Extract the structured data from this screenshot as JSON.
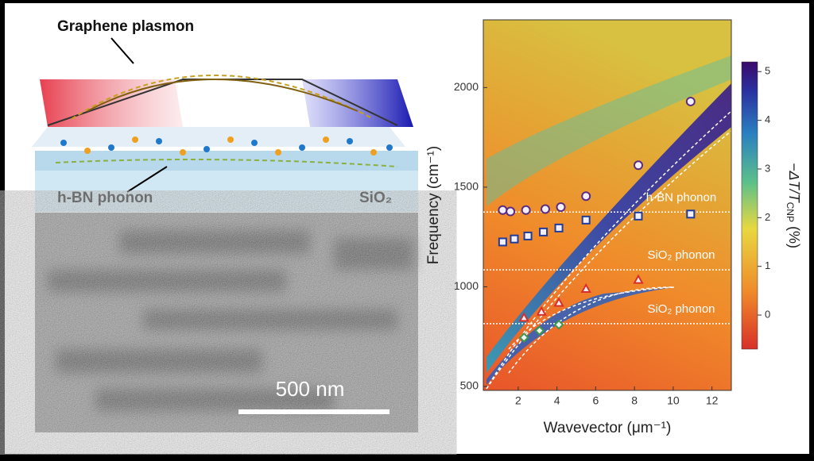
{
  "schematic": {
    "plasmon_label": "Graphene plasmon",
    "phonon_label": "h-BN phonon",
    "substrate_label": "SiO₂"
  },
  "micrograph": {
    "scale_label": "500 nm"
  },
  "chart_data": {
    "type": "scatter",
    "xlabel": "Wavevector (μm⁻¹)",
    "ylabel": "Frequency (cm⁻¹)",
    "xlim": [
      0.2,
      13
    ],
    "ylim": [
      480,
      2340
    ],
    "xticks": [
      2,
      4,
      6,
      8,
      10,
      12
    ],
    "yticks": [
      500,
      1000,
      1500,
      2000
    ],
    "series": [
      {
        "marker": "circle",
        "color": "#5b2c83",
        "x": [
          1.2,
          1.6,
          2.4,
          3.4,
          4.2,
          5.5,
          8.2,
          10.9
        ],
        "y": [
          1385,
          1378,
          1385,
          1390,
          1400,
          1455,
          1610,
          1930
        ]
      },
      {
        "marker": "square",
        "color": "#1f3c9c",
        "x": [
          1.2,
          1.8,
          2.5,
          3.3,
          4.1,
          5.5,
          8.2,
          10.9
        ],
        "y": [
          1225,
          1240,
          1255,
          1275,
          1295,
          1335,
          1355,
          1365
        ]
      },
      {
        "marker": "triangle",
        "color": "#d7302a",
        "x": [
          2.3,
          3.2,
          4.1,
          5.5,
          8.2
        ],
        "y": [
          845,
          875,
          920,
          990,
          1035
        ]
      },
      {
        "marker": "diamond",
        "color": "#3a9a4a",
        "x": [
          2.3,
          3.1,
          4.1
        ],
        "y": [
          745,
          780,
          810
        ]
      }
    ],
    "hlines": [
      1375,
      1085,
      815
    ],
    "annotations": [
      "h-BN phonon",
      "SiO₂ phonon",
      "SiO₂ phonon"
    ],
    "colorbar": {
      "label": "−ΔT/T",
      "label_sub": "CNP",
      "label_unit": " (%)",
      "zlim": [
        -0.7,
        5.2
      ],
      "ticks": [
        0,
        1,
        2,
        3,
        4,
        5
      ]
    }
  }
}
